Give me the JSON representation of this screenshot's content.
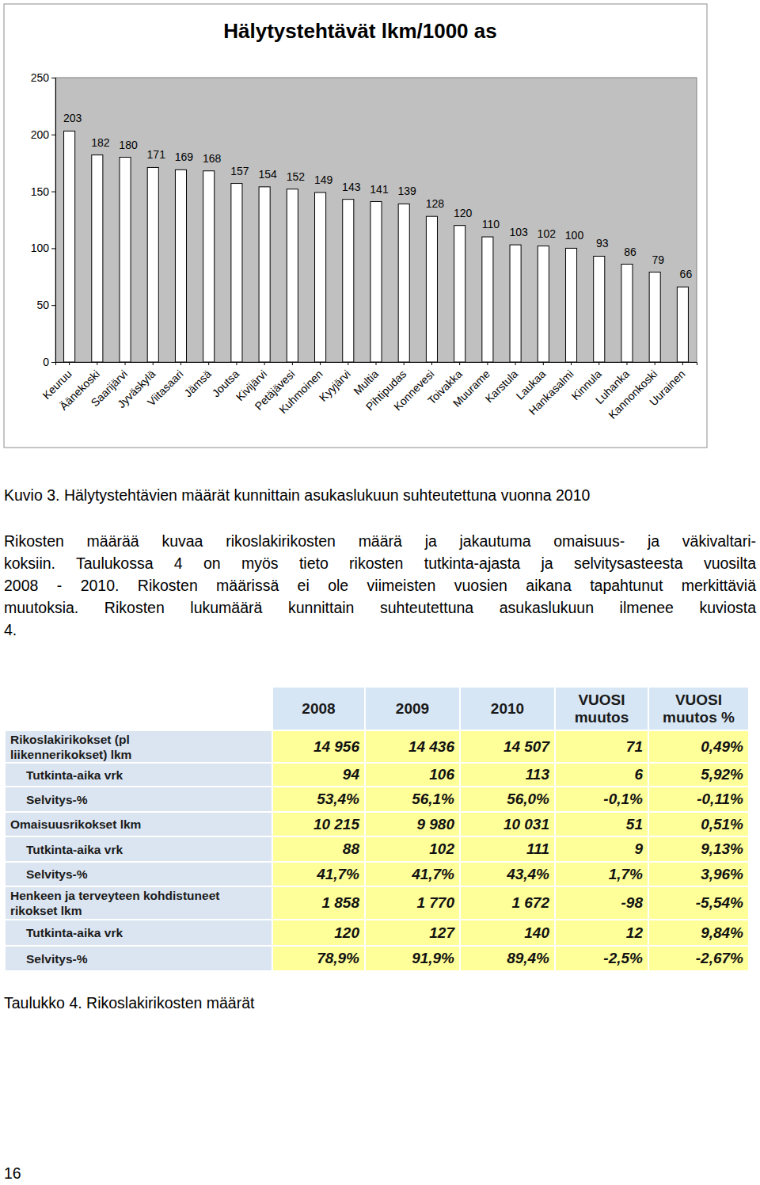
{
  "chart_data": {
    "type": "bar",
    "title": "Hälytystehtävät lkm/1000 as",
    "categories": [
      "Keuruu",
      "Äänekoski",
      "Saarijärvi",
      "Jyväskylä",
      "Viitasaari",
      "Jämsä",
      "Joutsa",
      "Kivijärvi",
      "Petäjävesi",
      "Kuhmoinen",
      "Kyyjärvi",
      "Multia",
      "Pihtipudas",
      "Konnevesi",
      "Toivakka",
      "Muurame",
      "Karstula",
      "Laukaa",
      "Hankasalmi",
      "Kinnula",
      "Luhanka",
      "Kannonkoski",
      "Uurainen"
    ],
    "values": [
      203,
      182,
      180,
      171,
      169,
      168,
      157,
      154,
      152,
      149,
      143,
      141,
      139,
      128,
      120,
      110,
      103,
      102,
      100,
      93,
      86,
      79,
      66
    ],
    "color": "#ffffff",
    "ylim": [
      0,
      250
    ],
    "yticks": [
      0,
      50,
      100,
      150,
      200,
      250
    ],
    "grid": false,
    "data_labels": true
  },
  "document": {
    "figure_caption": "Kuvio 3. Hälytystehtävien määrät kunnittain asukaslukuun suhteutettuna vuonna 2010",
    "paragraph": [
      "Rikosten määrää kuvaa rikoslakirikosten määrä ja jakautuma omaisuus- ja väkivaltari-",
      "koksiin. Taulukossa 4 on myös tieto rikosten tutkinta-ajasta ja selvitysasteesta vuosilta",
      "2008 - 2010. Rikosten määrissä ei ole viimeisten vuosien aikana tapahtunut merkittäviä",
      "muutoksia. Rikosten lukumäärä kunnittain suhteutettuna asukaslukuun ilmenee kuviosta",
      "4."
    ],
    "table": {
      "header": [
        "2008",
        "2009",
        "2010",
        "VUOSI\nmuutos",
        "VUOSI\nmuutos %"
      ],
      "rows": [
        [
          "Rikoslakirikokset (pl\nliikennerikokset) lkm",
          "14 956",
          "14 436",
          "14 507",
          "71",
          "0,49%"
        ],
        [
          "Tutkinta-aika vrk",
          "94",
          "106",
          "113",
          "6",
          "5,92%"
        ],
        [
          "Selvitys-%",
          "53,4%",
          "56,1%",
          "56,0%",
          "-0,1%",
          "-0,11%"
        ],
        [
          "Omaisuusrikokset lkm",
          "10 215",
          "9 980",
          "10 031",
          "51",
          "0,51%"
        ],
        [
          "Tutkinta-aika vrk",
          "88",
          "102",
          "111",
          "9",
          "9,13%"
        ],
        [
          "Selvitys-%",
          "41,7%",
          "41,7%",
          "43,4%",
          "1,7%",
          "3,96%"
        ],
        [
          "Henkeen ja terveyteen kohdistuneet\nrikokset lkm",
          "1 858",
          "1 770",
          "1 672",
          "-98",
          "-5,54%"
        ],
        [
          "Tutkinta-aika vrk",
          "120",
          "127",
          "140",
          "12",
          "9,84%"
        ],
        [
          "Selvitys-%",
          "78,9%",
          "91,9%",
          "89,4%",
          "-2,5%",
          "-2,67%"
        ]
      ]
    },
    "table_caption": "Taulukko 4. Rikoslakirikosten määrät",
    "page_number": "16"
  }
}
